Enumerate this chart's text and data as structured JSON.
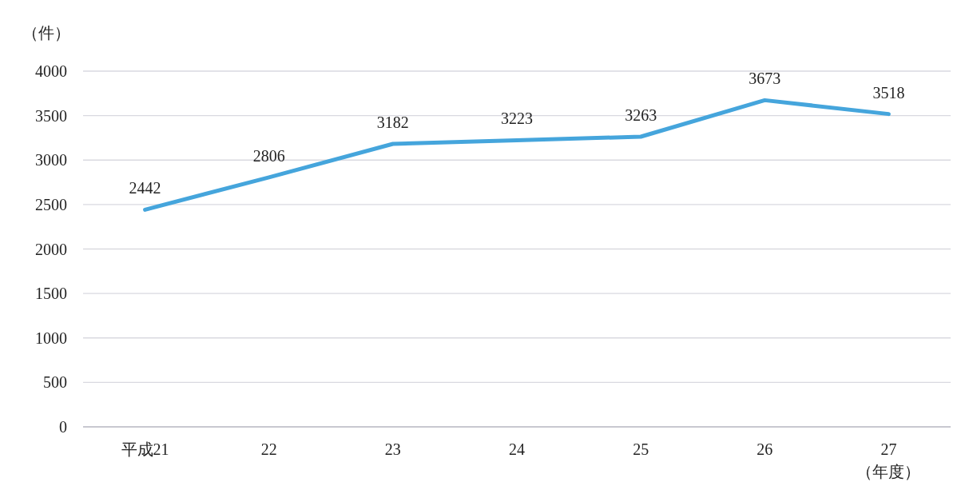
{
  "chart_data": {
    "type": "line",
    "ylabel": "（件）",
    "xlabel": "（年度）",
    "categories": [
      "平成21",
      "22",
      "23",
      "24",
      "25",
      "26",
      "27"
    ],
    "series": [
      {
        "color": "#45a5dc",
        "values": [
          2442,
          2806,
          3182,
          3223,
          3263,
          3673,
          3518
        ]
      }
    ],
    "ylim": [
      0,
      4000
    ],
    "yticks": [
      0,
      500,
      1000,
      1500,
      2000,
      2500,
      3000,
      3500,
      4000
    ],
    "grid": "y",
    "data_labels": true
  }
}
